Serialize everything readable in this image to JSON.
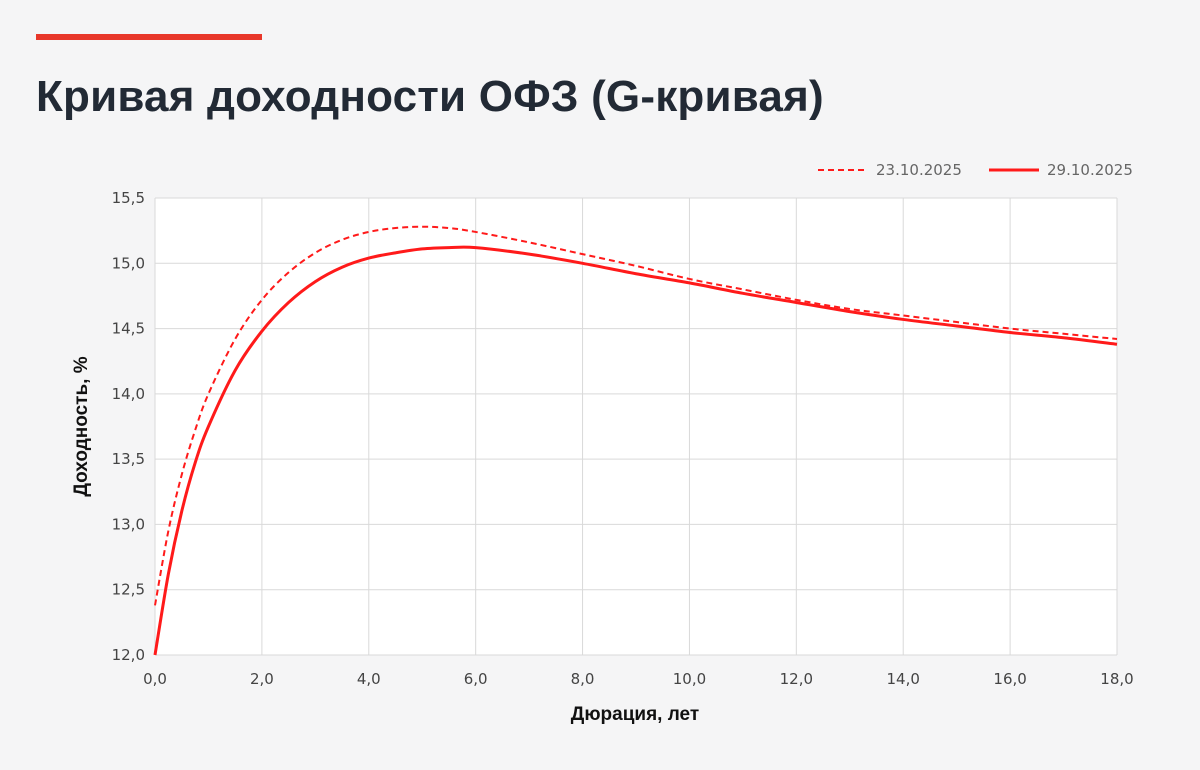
{
  "page": {
    "title": "Кривая доходности ОФЗ (G-кривая)",
    "accent_color": "#e8372a",
    "background_color": "#f5f5f6"
  },
  "chart_data": {
    "type": "line",
    "title": "",
    "xlabel": "Дюрация, лет",
    "ylabel": "Доходность, %",
    "xlim": [
      0,
      18
    ],
    "ylim": [
      12.0,
      15.5
    ],
    "x_ticks": [
      0,
      2,
      4,
      6,
      8,
      10,
      12,
      14,
      16,
      18
    ],
    "x_tick_labels": [
      "0,0",
      "2,0",
      "4,0",
      "6,0",
      "8,0",
      "10,0",
      "12,0",
      "14,0",
      "16,0",
      "18,0"
    ],
    "y_ticks": [
      12.0,
      12.5,
      13.0,
      13.5,
      14.0,
      14.5,
      15.0,
      15.5
    ],
    "y_tick_labels": [
      "12,0",
      "12,5",
      "13,0",
      "13,5",
      "14,0",
      "14,5",
      "15,0",
      "15,5"
    ],
    "grid": true,
    "legend_position": "top-right",
    "series": [
      {
        "name": "23.10.2025",
        "style": "dashed",
        "color": "#ff1a1a",
        "x": [
          0,
          0.25,
          0.5,
          0.75,
          1,
          1.5,
          2,
          2.5,
          3,
          3.5,
          4,
          4.5,
          5,
          5.5,
          6,
          7,
          8,
          9,
          10,
          11,
          12,
          13,
          14,
          15,
          16,
          17,
          18
        ],
        "y": [
          12.38,
          12.95,
          13.38,
          13.72,
          14.0,
          14.42,
          14.72,
          14.93,
          15.08,
          15.18,
          15.24,
          15.27,
          15.28,
          15.27,
          15.24,
          15.16,
          15.07,
          14.98,
          14.88,
          14.8,
          14.72,
          14.65,
          14.6,
          14.55,
          14.5,
          14.46,
          14.42
        ]
      },
      {
        "name": "29.10.2025",
        "style": "solid",
        "color": "#ff1a1a",
        "x": [
          0,
          0.25,
          0.5,
          0.75,
          1,
          1.5,
          2,
          2.5,
          3,
          3.5,
          4,
          4.5,
          5,
          5.5,
          6,
          7,
          8,
          9,
          10,
          11,
          12,
          13,
          14,
          15,
          16,
          17,
          18
        ],
        "y": [
          12.0,
          12.62,
          13.1,
          13.47,
          13.75,
          14.18,
          14.48,
          14.7,
          14.86,
          14.97,
          15.04,
          15.08,
          15.11,
          15.12,
          15.12,
          15.07,
          15.0,
          14.92,
          14.85,
          14.77,
          14.7,
          14.63,
          14.57,
          14.52,
          14.47,
          14.43,
          14.38
        ]
      }
    ]
  }
}
